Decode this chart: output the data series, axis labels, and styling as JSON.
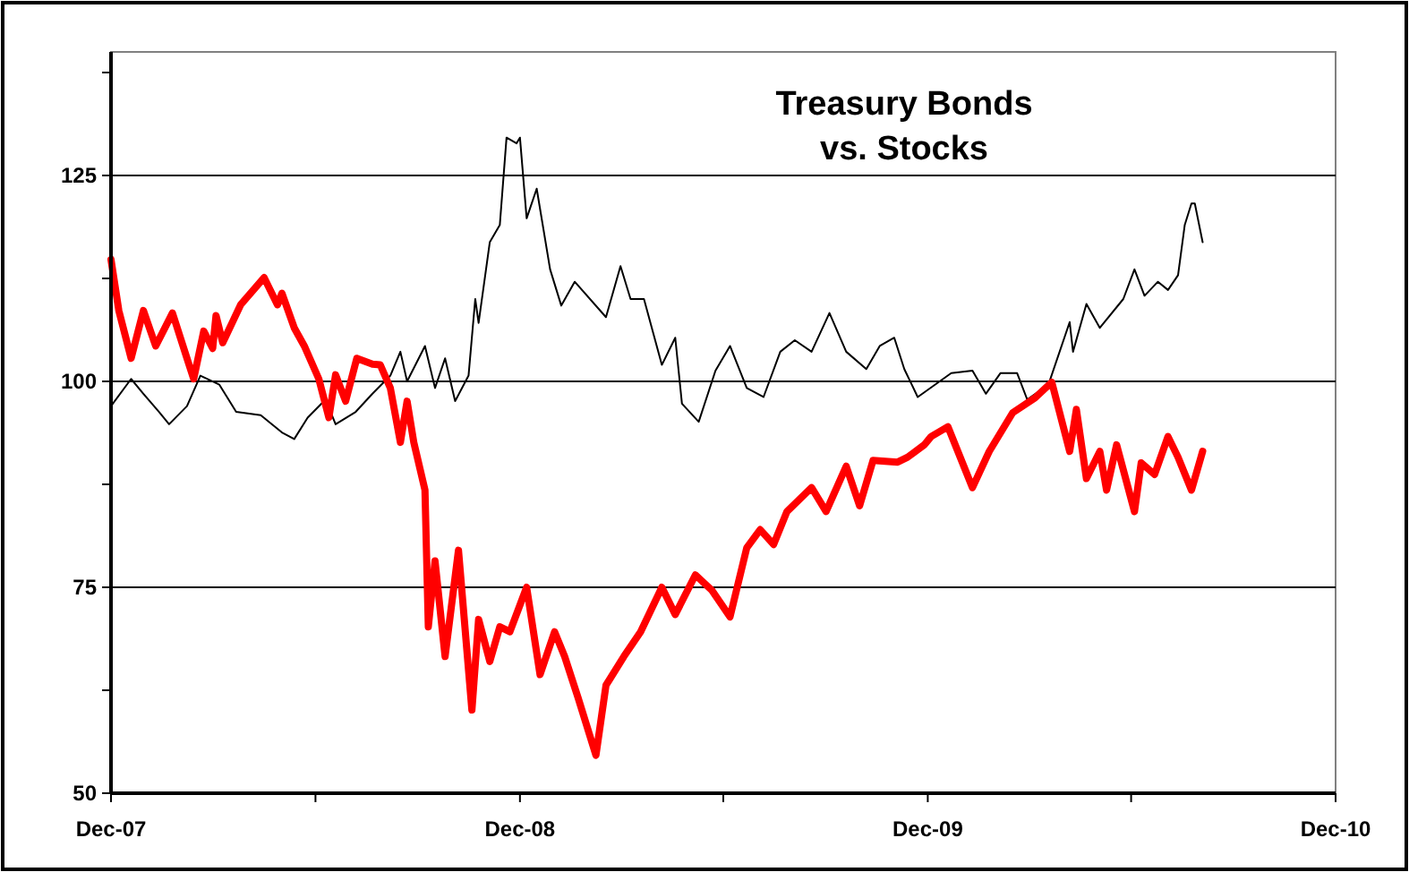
{
  "chart_data": {
    "type": "line",
    "title": "Treasury Bonds\nvs. Stocks",
    "xlim": [
      "2007-12",
      "2010-12"
    ],
    "xticks": [
      {
        "value": "2007-12",
        "label": "Dec-07"
      },
      {
        "value": "2008-06",
        "label": null
      },
      {
        "value": "2008-12",
        "label": "Dec-08"
      },
      {
        "value": "2009-06",
        "label": null
      },
      {
        "value": "2009-12",
        "label": "Dec-09"
      },
      {
        "value": "2010-06",
        "label": null
      },
      {
        "value": "2010-12",
        "label": "Dec-10"
      }
    ],
    "ylim": [
      50,
      140
    ],
    "yticks": [
      50,
      {
        "value": 62.5,
        "label": null
      },
      75,
      {
        "value": 87.5,
        "label": null
      },
      100,
      {
        "value": 112.5,
        "label": null
      },
      125,
      {
        "value": 137.5,
        "label": null
      }
    ],
    "grid": "y",
    "marker": "none",
    "line_style": "solid",
    "series": [
      {
        "color": "#000000",
        "x": [
          "2007-12-01",
          "2007-12-19",
          "2007-12-30",
          "2008-01-13",
          "2008-01-22",
          "2008-02-07",
          "2008-02-19",
          "2008-03-07",
          "2008-03-22",
          "2008-04-13",
          "2008-05-02",
          "2008-05-13",
          "2008-05-25",
          "2008-06-10",
          "2008-06-19",
          "2008-07-07",
          "2008-07-22",
          "2008-08-07",
          "2008-08-16",
          "2008-08-22",
          "2008-09-07",
          "2008-09-16",
          "2008-09-25",
          "2008-10-04",
          "2008-10-16",
          "2008-10-22",
          "2008-10-25",
          "2008-11-04",
          "2008-11-13",
          "2008-11-19",
          "2008-11-28",
          "2008-12-01",
          "2008-12-07",
          "2008-12-16",
          "2008-12-28",
          "2009-01-07",
          "2009-01-19",
          "2009-02-16",
          "2009-03-01",
          "2009-03-10",
          "2009-03-22",
          "2009-04-07",
          "2009-04-19",
          "2009-04-25",
          "2009-05-10",
          "2009-05-25",
          "2009-06-07",
          "2009-06-22",
          "2009-07-07",
          "2009-07-22",
          "2009-08-04",
          "2009-08-19",
          "2009-09-04",
          "2009-09-19",
          "2009-10-07",
          "2009-10-19",
          "2009-11-01",
          "2009-11-10",
          "2009-11-22",
          "2009-12-22",
          "2010-01-10",
          "2010-01-22",
          "2010-02-04",
          "2010-02-19",
          "2010-02-28",
          "2010-03-19",
          "2010-04-07",
          "2010-04-10",
          "2010-04-22",
          "2010-05-04",
          "2010-05-25",
          "2010-06-04",
          "2010-06-13",
          "2010-06-25",
          "2010-07-04",
          "2010-07-13",
          "2010-07-19",
          "2010-07-25",
          "2010-07-28",
          "2010-08-04"
        ],
        "values": [
          97,
          100.3,
          98.5,
          96.3,
          94.8,
          97,
          100.7,
          99.6,
          96.3,
          95.9,
          93.8,
          93,
          95.6,
          97.8,
          94.8,
          96.3,
          98.5,
          100.7,
          103.6,
          100,
          104.3,
          99.2,
          102.8,
          97.6,
          100.7,
          110,
          107.1,
          116.9,
          119,
          129.6,
          128.9,
          129.6,
          119.8,
          123.4,
          113.6,
          109.2,
          112.1,
          107.8,
          114,
          110,
          110,
          102,
          105.3,
          97.3,
          95.1,
          101.3,
          104.3,
          99.2,
          98.1,
          103.6,
          105,
          103.6,
          108.3,
          103.6,
          101.5,
          104.3,
          105.3,
          101.5,
          98.1,
          101,
          101.3,
          98.5,
          101,
          101,
          97.8,
          99.6,
          107.2,
          103.6,
          109.4,
          106.5,
          110,
          113.6,
          110.4,
          112.1,
          111.1,
          112.9,
          119,
          121.6,
          121.6,
          116.9
        ]
      },
      {
        "color": "#ff0000",
        "x": [
          "2007-12-01",
          "2007-12-08",
          "2007-12-19",
          "2007-12-30",
          "2008-01-10",
          "2008-01-25",
          "2008-02-07",
          "2008-02-13",
          "2008-02-22",
          "2008-03-01",
          "2008-03-04",
          "2008-03-10",
          "2008-03-26",
          "2008-04-16",
          "2008-04-28",
          "2008-05-02",
          "2008-05-13",
          "2008-05-22",
          "2008-06-04",
          "2008-06-13",
          "2008-06-19",
          "2008-06-28",
          "2008-07-08",
          "2008-07-22",
          "2008-07-29",
          "2008-08-07",
          "2008-08-16",
          "2008-08-22",
          "2008-08-28",
          "2008-09-07",
          "2008-09-10",
          "2008-09-16",
          "2008-09-25",
          "2008-10-07",
          "2008-10-19",
          "2008-10-25",
          "2008-11-04",
          "2008-11-13",
          "2008-11-22",
          "2008-12-07",
          "2008-12-19",
          "2009-01-01",
          "2009-01-10",
          "2009-01-22",
          "2009-02-07",
          "2009-02-16",
          "2009-03-04",
          "2009-03-19",
          "2009-04-07",
          "2009-04-19",
          "2009-05-07",
          "2009-05-22",
          "2009-06-07",
          "2009-06-22",
          "2009-07-04",
          "2009-07-16",
          "2009-07-28",
          "2009-08-19",
          "2009-09-01",
          "2009-09-19",
          "2009-10-01",
          "2009-10-13",
          "2009-11-04",
          "2009-11-13",
          "2009-11-28",
          "2009-12-04",
          "2009-12-19",
          "2010-01-10",
          "2010-01-25",
          "2010-02-15",
          "2010-03-07",
          "2010-03-22",
          "2010-04-07",
          "2010-04-13",
          "2010-04-22",
          "2010-05-04",
          "2010-05-10",
          "2010-05-19",
          "2010-06-04",
          "2010-06-10",
          "2010-06-22",
          "2010-07-04",
          "2010-07-13",
          "2010-07-25",
          "2010-08-04"
        ],
        "values": [
          114.8,
          108.6,
          102.8,
          108.6,
          104.3,
          108.3,
          102.8,
          100.3,
          106.1,
          104,
          108,
          104.7,
          109.3,
          112.6,
          109.3,
          110.7,
          106.5,
          104.3,
          100.3,
          95.6,
          100.8,
          97.6,
          102.8,
          102.1,
          102,
          99.2,
          92.6,
          97.6,
          92.6,
          86.8,
          70.2,
          78.2,
          66.6,
          79.5,
          60.1,
          71.1,
          66,
          70.2,
          69.6,
          75,
          64.4,
          69.6,
          66.6,
          61.6,
          54.6,
          63.1,
          66.6,
          69.6,
          75,
          71.7,
          76.5,
          74.6,
          71.4,
          79.8,
          82,
          80.2,
          84.2,
          87.1,
          84.2,
          89.7,
          84.9,
          90.4,
          90.2,
          90.8,
          92.3,
          93.3,
          94.5,
          87.1,
          91.5,
          96.2,
          98,
          99.9,
          91.5,
          96.6,
          88.2,
          91.5,
          86.8,
          92.3,
          84.2,
          90.1,
          88.7,
          93.3,
          90.8,
          86.8,
          91.5
        ]
      }
    ]
  }
}
